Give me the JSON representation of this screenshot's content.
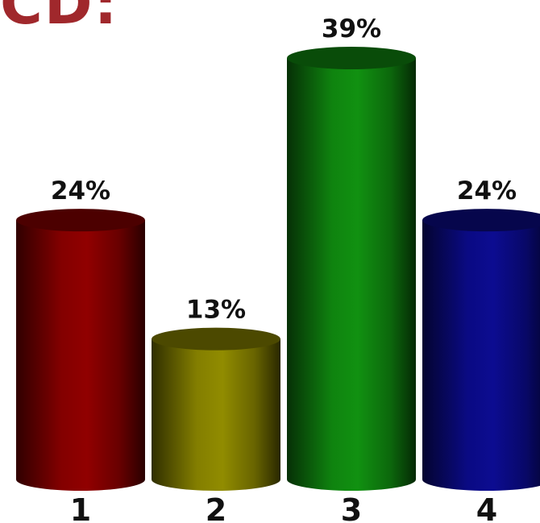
{
  "title_fragment": "CD:",
  "chart_data": {
    "type": "bar",
    "categories": [
      "1",
      "2",
      "3",
      "4"
    ],
    "values": [
      24,
      13,
      39,
      24
    ],
    "value_labels": [
      "24%",
      "13%",
      "39%",
      "24%"
    ],
    "colors": [
      "#8a0000",
      "#8a8500",
      "#108a10",
      "#0b0b8a"
    ],
    "ylim": [
      0,
      39
    ],
    "grid": false,
    "legend": "none"
  }
}
